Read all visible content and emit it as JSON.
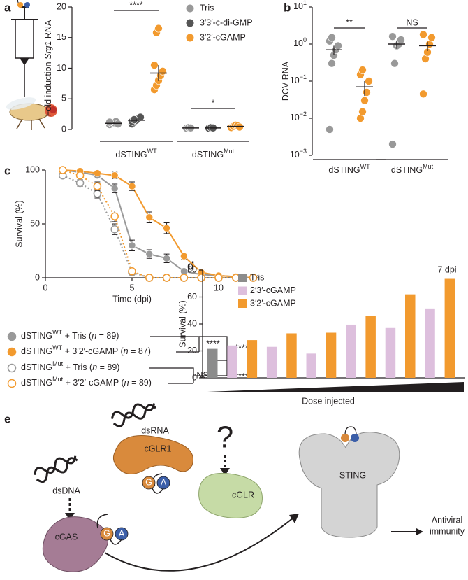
{
  "panels": [
    "a",
    "b",
    "c",
    "d",
    "e"
  ],
  "chart_data": [
    {
      "type": "strip",
      "ylabel": [
        "Fold induction ",
        "Srg1",
        " RNA"
      ],
      "groups": [
        {
          "name": "dSTING",
          "sup": "WT"
        },
        {
          "name": "dSTING",
          "sup": "Mut"
        }
      ],
      "ylim": [
        0,
        20
      ],
      "yticks": [
        0,
        5,
        10,
        15,
        20
      ],
      "series": [
        {
          "name": "Tris",
          "color": "#999999",
          "values": [
            [
              0.8,
              1.0,
              1.1,
              1.3,
              0.9,
              1.2
            ],
            [
              0.2,
              0.3,
              0.25
            ]
          ],
          "mean": [
            1.0,
            0.25
          ],
          "sem": [
            0.15,
            0.03
          ]
        },
        {
          "name": "3′3′-c-di-GMP",
          "color": "#555555",
          "values": [
            [
              0.9,
              1.2,
              1.5,
              1.8,
              2.0,
              1.3,
              1.6
            ],
            [
              0.2,
              0.3,
              0.25
            ]
          ],
          "mean": [
            1.5,
            0.25
          ],
          "sem": [
            0.2,
            0.03
          ]
        },
        {
          "name": "3′2′-cGAMP",
          "color": "#f29a2e",
          "values": [
            [
              6.5,
              7.2,
              8.0,
              8.8,
              9.5,
              10.5,
              15.8,
              16.5
            ],
            [
              0.3,
              0.5,
              0.7,
              0.6,
              0.4
            ]
          ],
          "mean": [
            9.2,
            0.5
          ],
          "sem": [
            1.3,
            0.1
          ]
        }
      ],
      "significance": [
        {
          "label": "****",
          "group": 0
        },
        {
          "label": "*",
          "group": 1
        }
      ]
    },
    {
      "type": "strip",
      "log_y": true,
      "ylabel": [
        "DCV RNA"
      ],
      "groups": [
        {
          "name": "dSTING",
          "sup": "WT"
        },
        {
          "name": "dSTING",
          "sup": "Mut"
        }
      ],
      "ylim": [
        0.001,
        10
      ],
      "yticks": [
        {
          "value": 0.001,
          "label": "10",
          "exp": "−3"
        },
        {
          "value": 0.01,
          "label": "10",
          "exp": "−2"
        },
        {
          "value": 0.1,
          "label": "10",
          "exp": "−1"
        },
        {
          "value": 1,
          "label": "10",
          "exp": "0"
        },
        {
          "value": 10,
          "label": "10",
          "exp": "1"
        }
      ],
      "series": [
        {
          "color": "#999999",
          "values": [
            [
              0.005,
              0.3,
              0.5,
              0.7,
              0.9,
              1.2,
              1.5
            ],
            [
              0.002,
              0.3,
              0.9,
              1.0,
              1.3,
              1.6
            ]
          ],
          "mean": [
            0.7,
            1.0
          ],
          "sem": [
            0.2,
            0.25
          ]
        },
        {
          "color": "#f29a2e",
          "values": [
            [
              0.01,
              0.015,
              0.03,
              0.05,
              0.1,
              0.15,
              0.2
            ],
            [
              0.045,
              0.4,
              0.6,
              1.0,
              1.5,
              1.8
            ]
          ],
          "mean": [
            0.07,
            0.9
          ],
          "sem": [
            0.03,
            0.25
          ]
        }
      ],
      "significance": [
        {
          "label": "**",
          "group": 0
        },
        {
          "label": "NS",
          "group": 1
        }
      ]
    },
    {
      "type": "line",
      "xlabel": "Time (dpi)",
      "ylabel": "Survival (%)",
      "xlim": [
        0,
        12.3
      ],
      "xticks": [
        0,
        5,
        10
      ],
      "ylim": [
        0,
        100
      ],
      "yticks": [
        0,
        50,
        100
      ],
      "series": [
        {
          "name": [
            "dSTING",
            "WT",
            " + Tris (",
            "n",
            " = 89)"
          ],
          "color": "#999999",
          "style": "solid",
          "marker": "filled",
          "x": [
            1,
            2,
            3,
            4,
            5,
            6,
            7,
            8,
            9,
            10,
            11,
            12
          ],
          "values": [
            100,
            98,
            95,
            83,
            30,
            22,
            18,
            6,
            3,
            2,
            1,
            0
          ],
          "err": [
            0,
            1,
            2,
            4,
            5,
            4,
            4,
            2,
            1,
            1,
            1,
            0
          ]
        },
        {
          "name": [
            "dSTING",
            "WT",
            " + 3′2′-cGAMP (",
            "n",
            " = 87)"
          ],
          "color": "#f29a2e",
          "style": "solid",
          "marker": "filled",
          "x": [
            1,
            2,
            3,
            4,
            5,
            6,
            7,
            8,
            9,
            10,
            11,
            12
          ],
          "values": [
            100,
            99,
            97,
            95,
            85,
            56,
            46,
            20,
            5,
            2,
            1,
            0
          ],
          "err": [
            0,
            1,
            2,
            3,
            4,
            5,
            5,
            3,
            2,
            1,
            1,
            0
          ]
        },
        {
          "name": [
            "dSTING",
            "Mut",
            " + Tris (",
            "n",
            " = 89)"
          ],
          "color": "#999999",
          "style": "dotted",
          "marker": "open",
          "x": [
            1,
            2,
            3,
            4,
            5,
            6,
            7,
            8,
            9,
            10,
            11,
            12
          ],
          "values": [
            95,
            88,
            78,
            45,
            5,
            0,
            0,
            0,
            0,
            0,
            0,
            0
          ],
          "err": [
            2,
            3,
            4,
            5,
            2,
            0,
            0,
            0,
            0,
            0,
            0,
            0
          ]
        },
        {
          "name": [
            "dSTING",
            "Mut",
            " + 3′2′-cGAMP (",
            "n",
            " = 89)"
          ],
          "color": "#f29a2e",
          "style": "dotted",
          "marker": "open",
          "x": [
            1,
            2,
            3,
            4,
            5,
            6,
            7,
            8,
            9,
            10,
            11,
            12
          ],
          "values": [
            100,
            95,
            85,
            57,
            6,
            0,
            0,
            0,
            0,
            0,
            0,
            0
          ],
          "err": [
            0,
            2,
            4,
            5,
            2,
            0,
            0,
            0,
            0,
            0,
            0,
            0
          ]
        }
      ],
      "significance": [
        {
          "label": "****"
        },
        {
          "label": "****"
        },
        {
          "label": "NS"
        },
        {
          "label": "****"
        }
      ]
    },
    {
      "type": "bar",
      "ylabel": "Survival (%)",
      "xlabel": "Dose injected",
      "annotation": "7 dpi",
      "ylim": [
        0,
        80
      ],
      "yticks": [
        0,
        20,
        40,
        60,
        80
      ],
      "series": [
        {
          "name": "Tris",
          "color": "#8c8c8c",
          "values": [
            21.5,
            null,
            null,
            null,
            null,
            null,
            null
          ]
        },
        {
          "name": "2′3′-cGAMP",
          "color": "#ddbfdd",
          "values": [
            null,
            24,
            23,
            18,
            39.5,
            37,
            51.5
          ]
        },
        {
          "name": "3′2′-cGAMP",
          "color": "#f29a2e",
          "values": [
            null,
            28,
            33,
            33.5,
            46,
            62,
            73.5
          ]
        }
      ]
    }
  ],
  "diagram": {
    "dsDNA": "dsDNA",
    "dsRNA": "dsRNA",
    "unknown": "?",
    "cGAS": "cGAS",
    "cGLR1": "cGLR1",
    "cGLR": "cGLR",
    "STING": "STING",
    "output": [
      "Antiviral",
      "immunity"
    ],
    "G": "G",
    "A": "A"
  }
}
